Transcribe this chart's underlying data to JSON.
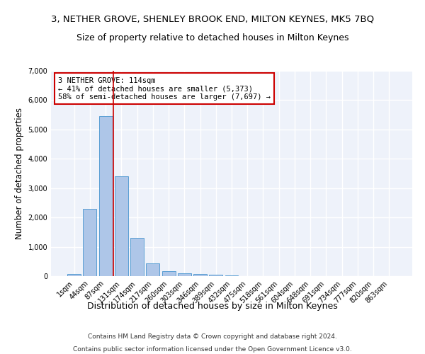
{
  "title": "3, NETHER GROVE, SHENLEY BROOK END, MILTON KEYNES, MK5 7BQ",
  "subtitle": "Size of property relative to detached houses in Milton Keynes",
  "xlabel": "Distribution of detached houses by size in Milton Keynes",
  "ylabel": "Number of detached properties",
  "footer_line1": "Contains HM Land Registry data © Crown copyright and database right 2024.",
  "footer_line2": "Contains public sector information licensed under the Open Government Licence v3.0.",
  "bar_labels": [
    "1sqm",
    "44sqm",
    "87sqm",
    "131sqm",
    "174sqm",
    "217sqm",
    "260sqm",
    "303sqm",
    "346sqm",
    "389sqm",
    "432sqm",
    "475sqm",
    "518sqm",
    "561sqm",
    "604sqm",
    "648sqm",
    "691sqm",
    "734sqm",
    "777sqm",
    "820sqm",
    "863sqm"
  ],
  "bar_values": [
    75,
    2300,
    5450,
    3400,
    1300,
    430,
    170,
    100,
    75,
    40,
    25,
    5,
    0,
    0,
    0,
    0,
    0,
    0,
    0,
    0,
    0
  ],
  "bar_color": "#aec6e8",
  "bar_edge_color": "#5a9fd4",
  "vline_x": 2.5,
  "vline_color": "#cc0000",
  "annotation_text": "3 NETHER GROVE: 114sqm\n← 41% of detached houses are smaller (5,373)\n58% of semi-detached houses are larger (7,697) →",
  "annotation_box_color": "white",
  "annotation_box_edge_color": "#cc0000",
  "ylim": [
    0,
    7000
  ],
  "yticks": [
    0,
    1000,
    2000,
    3000,
    4000,
    5000,
    6000,
    7000
  ],
  "background_color": "#eef2fa",
  "grid_color": "white",
  "title_fontsize": 9.5,
  "subtitle_fontsize": 9,
  "xlabel_fontsize": 9,
  "ylabel_fontsize": 8.5,
  "tick_fontsize": 7,
  "annotation_fontsize": 7.5,
  "footer_fontsize": 6.5
}
